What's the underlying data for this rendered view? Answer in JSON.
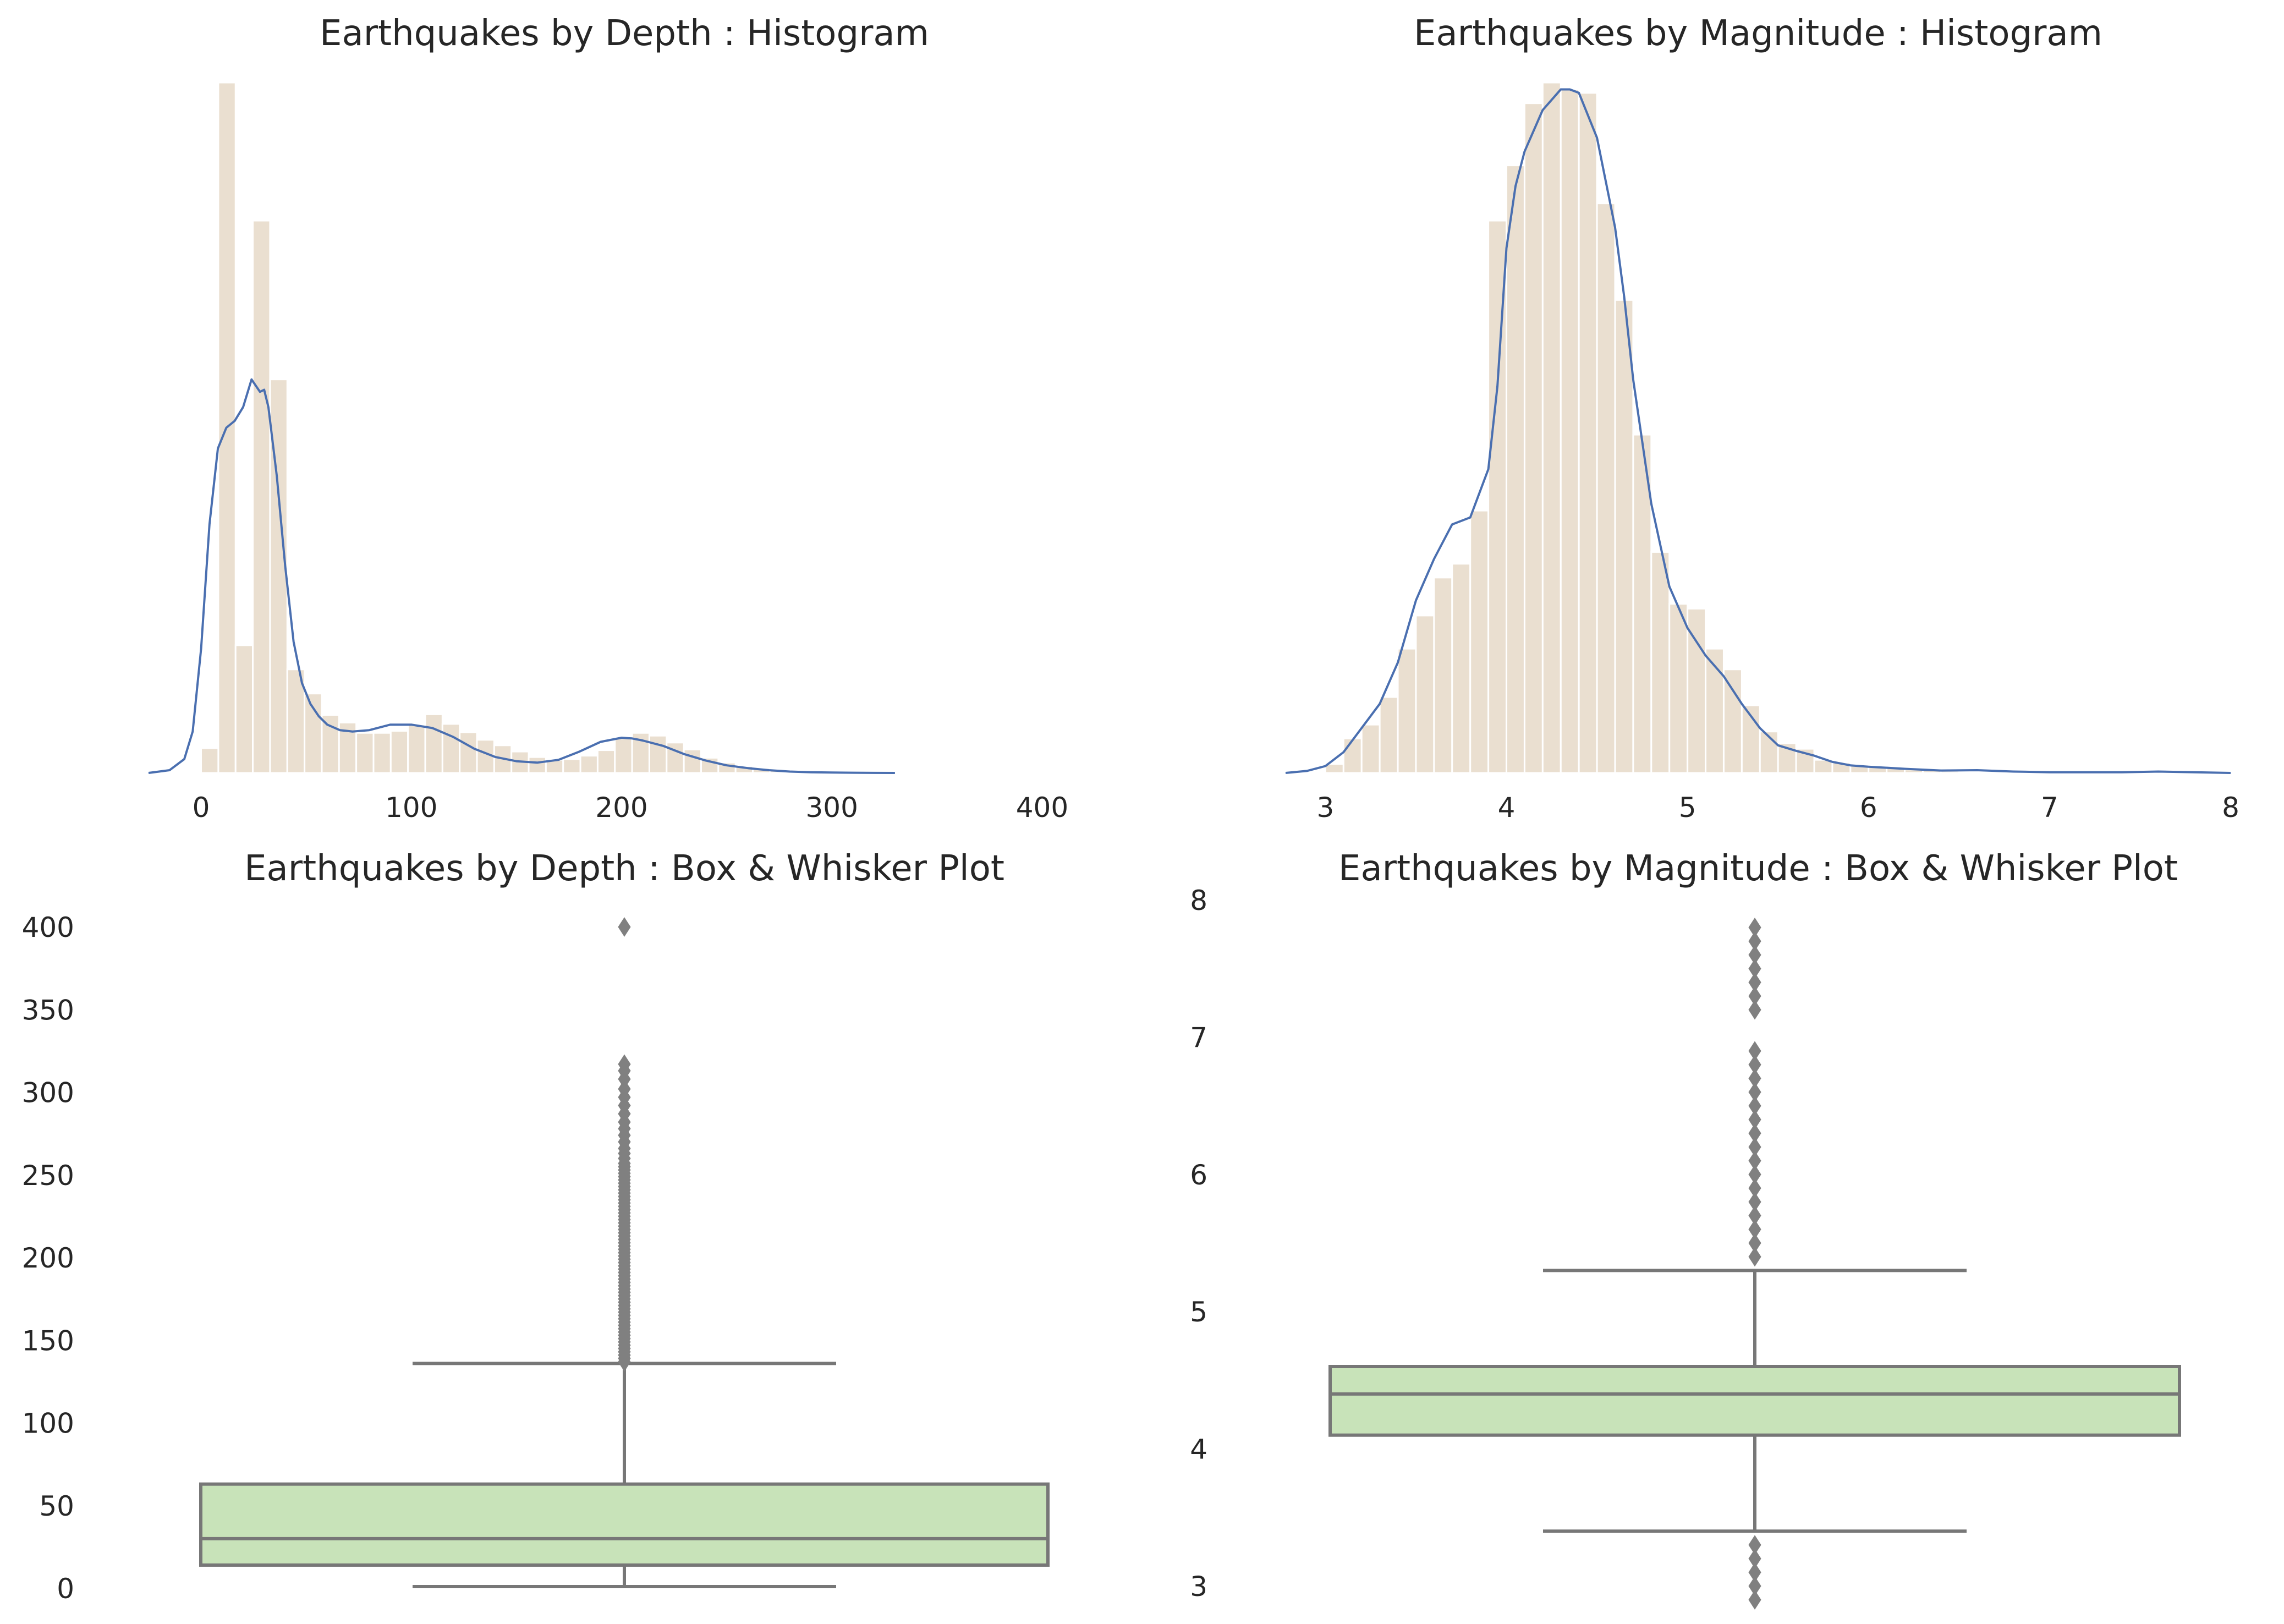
{
  "colors": {
    "hist_bar": "#eadfd0",
    "kde_line": "#4a6fb0",
    "box_fill": "#c8e3b9",
    "box_line": "#777777",
    "flier": "#808080"
  },
  "chart_data": [
    {
      "type": "histogram",
      "title": "Earthquakes by Depth : Histogram",
      "xlabel": "",
      "ylabel": "",
      "xlim": [
        -25,
        425
      ],
      "xticks": [
        0,
        100,
        200,
        300,
        400
      ],
      "bin_edges": [
        0,
        8.2,
        16.4,
        24.6,
        32.8,
        41,
        49.2,
        57.4,
        65.6,
        73.8,
        82,
        90.2,
        98.4,
        106.6,
        114.8,
        123,
        131.2,
        139.4,
        147.6,
        155.8,
        164,
        172.2,
        180.4,
        188.6,
        196.8,
        205,
        213.2,
        221.4,
        229.6,
        237.8,
        246,
        254.2,
        262.4,
        270.6,
        278.8,
        287,
        295.2,
        303.4,
        311.6,
        319.8
      ],
      "counts": [
        0.036,
        1.0,
        0.185,
        0.8,
        0.57,
        0.15,
        0.115,
        0.084,
        0.073,
        0.058,
        0.058,
        0.061,
        0.07,
        0.085,
        0.071,
        0.059,
        0.048,
        0.04,
        0.031,
        0.023,
        0.019,
        0.02,
        0.025,
        0.033,
        0.05,
        0.058,
        0.054,
        0.044,
        0.034,
        0.022,
        0.015,
        0.01,
        0.007,
        0.005,
        0.003,
        0.002,
        0.0015,
        0.001,
        0.0005
      ],
      "kde": {
        "x": [
          -25,
          -15,
          -8,
          -4,
          0,
          4,
          8,
          12,
          16,
          20,
          24,
          28,
          30,
          32,
          36,
          40,
          44,
          48,
          52,
          56,
          60,
          66,
          72,
          80,
          90,
          100,
          110,
          120,
          130,
          140,
          150,
          160,
          170,
          180,
          190,
          200,
          205,
          210,
          220,
          230,
          240,
          250,
          260,
          270,
          280,
          290,
          300,
          310,
          320,
          330
        ],
        "y": [
          0,
          0.004,
          0.02,
          0.06,
          0.18,
          0.36,
          0.47,
          0.5,
          0.51,
          0.53,
          0.57,
          0.552,
          0.555,
          0.53,
          0.43,
          0.3,
          0.19,
          0.13,
          0.1,
          0.082,
          0.07,
          0.062,
          0.06,
          0.062,
          0.07,
          0.07,
          0.065,
          0.052,
          0.035,
          0.023,
          0.017,
          0.015,
          0.019,
          0.031,
          0.045,
          0.051,
          0.05,
          0.047,
          0.039,
          0.027,
          0.018,
          0.011,
          0.007,
          0.004,
          0.002,
          0.001,
          0.0006,
          0.0003,
          0.0001,
          0
        ]
      }
    },
    {
      "type": "histogram",
      "title": "Earthquakes by Magnitude : Histogram",
      "xlabel": "",
      "ylabel": "",
      "xlim": [
        2.78,
        8.0
      ],
      "xticks": [
        3,
        4,
        5,
        6,
        7,
        8
      ],
      "bin_edges": [
        3.0,
        3.1,
        3.2,
        3.3,
        3.4,
        3.5,
        3.6,
        3.7,
        3.8,
        3.9,
        4.0,
        4.1,
        4.2,
        4.3,
        4.4,
        4.5,
        4.6,
        4.7,
        4.8,
        4.9,
        5.0,
        5.1,
        5.2,
        5.3,
        5.4,
        5.5,
        5.6,
        5.7,
        5.8,
        5.9,
        6.0,
        6.1,
        6.2,
        6.3,
        6.4,
        6.5,
        6.6,
        6.7,
        6.8,
        6.9,
        7.0,
        7.1,
        7.2,
        7.3,
        7.4,
        7.5,
        7.6,
        7.7,
        7.8,
        7.9,
        8.0
      ],
      "counts": [
        0.013,
        0.05,
        0.07,
        0.11,
        0.18,
        0.228,
        0.283,
        0.303,
        0.38,
        0.8,
        0.88,
        0.97,
        1.0,
        0.99,
        0.985,
        0.825,
        0.685,
        0.49,
        0.32,
        0.245,
        0.238,
        0.18,
        0.15,
        0.098,
        0.06,
        0.043,
        0.035,
        0.019,
        0.015,
        0.012,
        0.009,
        0.007,
        0.005,
        0.004,
        0.003,
        0.002,
        0.0015,
        0.001,
        0.001,
        0.001,
        0.001,
        0.001,
        0.0008,
        0.0008,
        0.0006,
        0.0005,
        0.0004,
        0.0003,
        0.0002,
        0.0001
      ],
      "kde": {
        "x": [
          2.78,
          2.9,
          3.0,
          3.1,
          3.2,
          3.3,
          3.4,
          3.5,
          3.6,
          3.7,
          3.8,
          3.9,
          3.95,
          4.0,
          4.05,
          4.1,
          4.2,
          4.3,
          4.35,
          4.4,
          4.5,
          4.6,
          4.65,
          4.7,
          4.8,
          4.9,
          5.0,
          5.1,
          5.2,
          5.3,
          5.4,
          5.5,
          5.6,
          5.7,
          5.8,
          5.9,
          6.0,
          6.2,
          6.4,
          6.6,
          6.8,
          7.0,
          7.2,
          7.4,
          7.6,
          7.8,
          8.0
        ],
        "y": [
          0,
          0.003,
          0.01,
          0.03,
          0.065,
          0.1,
          0.16,
          0.25,
          0.31,
          0.36,
          0.37,
          0.44,
          0.56,
          0.76,
          0.85,
          0.9,
          0.96,
          0.99,
          0.99,
          0.985,
          0.92,
          0.79,
          0.69,
          0.57,
          0.39,
          0.27,
          0.21,
          0.17,
          0.14,
          0.1,
          0.065,
          0.04,
          0.032,
          0.025,
          0.016,
          0.011,
          0.009,
          0.006,
          0.0035,
          0.004,
          0.002,
          0.001,
          0.001,
          0.001,
          0.002,
          0.001,
          0
        ]
      }
    },
    {
      "type": "boxplot",
      "title": "Earthquakes by Depth : Box & Whisker Plot",
      "ylim": [
        0,
        400
      ],
      "yticks": [
        0,
        50,
        100,
        150,
        200,
        250,
        300,
        350,
        400
      ],
      "q1": 14,
      "median": 30,
      "q3": 63,
      "whisker_low": 1,
      "whisker_high": 136,
      "fliers": [
        137,
        139,
        141,
        143,
        145,
        147,
        149,
        151,
        153,
        155,
        157,
        159,
        161,
        163,
        165,
        167,
        169,
        171,
        173,
        175,
        177,
        179,
        181,
        183,
        185,
        187,
        189,
        191,
        193,
        195,
        197,
        199,
        201,
        203,
        205,
        207,
        209,
        211,
        213,
        215,
        217,
        219,
        221,
        223,
        225,
        227,
        229,
        231,
        233,
        235,
        237,
        239,
        241,
        243,
        245,
        247,
        249,
        251,
        253,
        255,
        257,
        260,
        263,
        266,
        270,
        274,
        278,
        282,
        287,
        292,
        297,
        302,
        308,
        313,
        317,
        400
      ]
    },
    {
      "type": "boxplot",
      "title": "Earthquakes by Magnitude : Box & Whisker Plot",
      "ylim": [
        2.9,
        8.0
      ],
      "yticks": [
        3,
        4,
        5,
        6,
        7,
        8
      ],
      "q1": 4.1,
      "median": 4.4,
      "q3": 4.6,
      "whisker_low": 3.4,
      "whisker_high": 5.3,
      "fliers": [
        2.9,
        3.0,
        3.1,
        3.2,
        3.3,
        5.4,
        5.5,
        5.6,
        5.7,
        5.8,
        5.9,
        6.0,
        6.1,
        6.2,
        6.3,
        6.4,
        6.5,
        6.6,
        6.7,
        6.8,
        6.9,
        7.2,
        7.3,
        7.4,
        7.5,
        7.6,
        7.7,
        7.8
      ]
    }
  ]
}
